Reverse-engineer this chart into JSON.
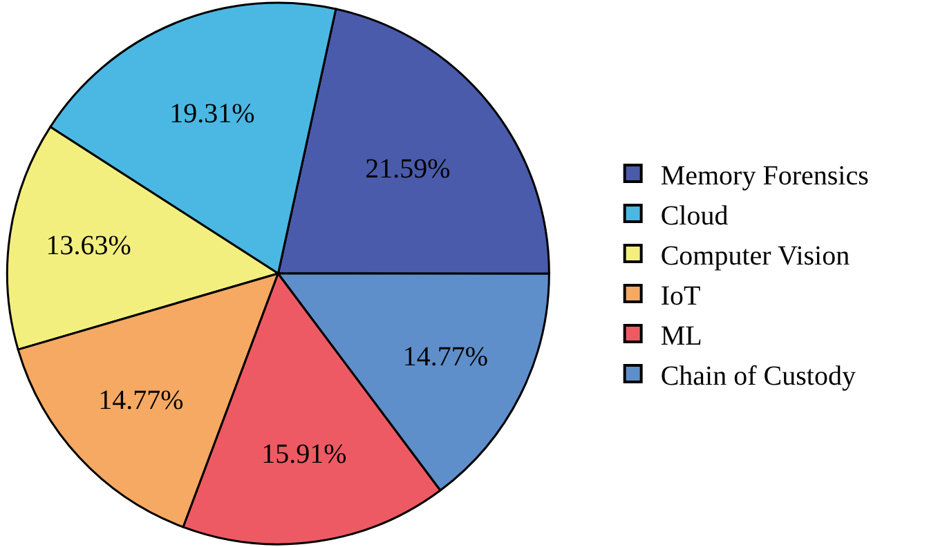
{
  "chart_data": {
    "type": "pie",
    "categories": [
      "Memory Forensics",
      "Cloud",
      "Computer Vision",
      "IoT",
      "ML",
      "Chain of Custody"
    ],
    "values": [
      21.59,
      19.31,
      13.63,
      14.77,
      15.91,
      14.77
    ],
    "value_labels": [
      "21.59%",
      "19.31%",
      "13.63%",
      "14.77%",
      "15.91%",
      "14.77%"
    ],
    "colors": [
      "#4a5bab",
      "#4ab8e3",
      "#f3ef7f",
      "#f5a963",
      "#ee5a63",
      "#5f8fca"
    ],
    "legend": "right"
  }
}
